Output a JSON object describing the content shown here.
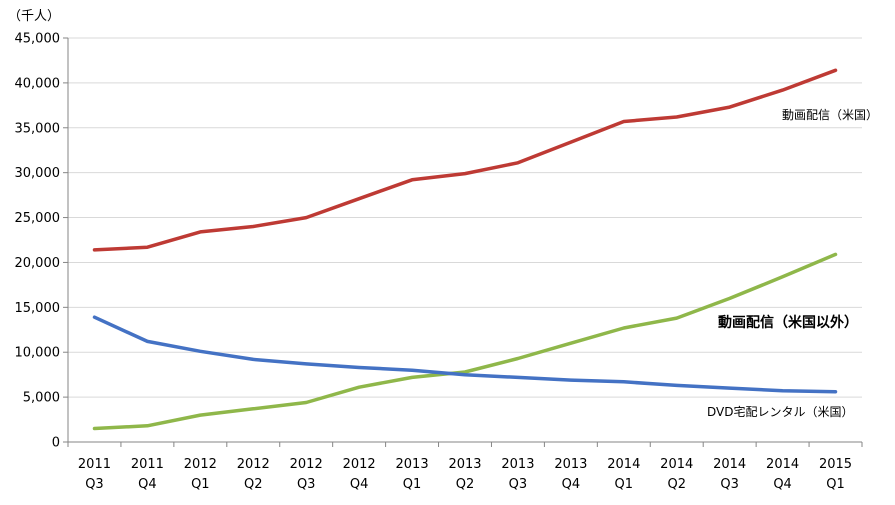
{
  "chart_data": {
    "type": "line",
    "ylabel": "（千人）",
    "ylim": [
      0,
      45000
    ],
    "yticks": [
      "0",
      "5,000",
      "10,000",
      "15,000",
      "20,000",
      "25,000",
      "30,000",
      "35,000",
      "40,000",
      "45,000"
    ],
    "grid": true,
    "categories": [
      [
        "2011",
        "Q3"
      ],
      [
        "2011",
        "Q4"
      ],
      [
        "2012",
        "Q1"
      ],
      [
        "2012",
        "Q2"
      ],
      [
        "2012",
        "Q3"
      ],
      [
        "2012",
        "Q4"
      ],
      [
        "2013",
        "Q1"
      ],
      [
        "2013",
        "Q2"
      ],
      [
        "2013",
        "Q3"
      ],
      [
        "2013",
        "Q4"
      ],
      [
        "2014",
        "Q1"
      ],
      [
        "2014",
        "Q2"
      ],
      [
        "2014",
        "Q3"
      ],
      [
        "2014",
        "Q4"
      ],
      [
        "2015",
        "Q1"
      ]
    ],
    "series": [
      {
        "name": "動画配信（米国）",
        "color": "#be3a34",
        "label_bold": false,
        "values": [
          21400,
          21700,
          23400,
          24000,
          25000,
          27100,
          29200,
          29900,
          31100,
          33400,
          35700,
          36200,
          37300,
          39200,
          41400
        ]
      },
      {
        "name": "動画配信（米国以外）",
        "color": "#8fb74a",
        "label_bold": true,
        "values": [
          1500,
          1800,
          3000,
          3700,
          4400,
          6100,
          7200,
          7800,
          9300,
          11000,
          12700,
          13800,
          16000,
          18400,
          20900
        ]
      },
      {
        "name": "DVD宅配レンタル（米国）",
        "color": "#4472c4",
        "label_bold": false,
        "values": [
          13900,
          11200,
          10100,
          9200,
          8700,
          8300,
          8000,
          7500,
          7200,
          6900,
          6700,
          6300,
          6000,
          5700,
          5600
        ]
      }
    ]
  }
}
